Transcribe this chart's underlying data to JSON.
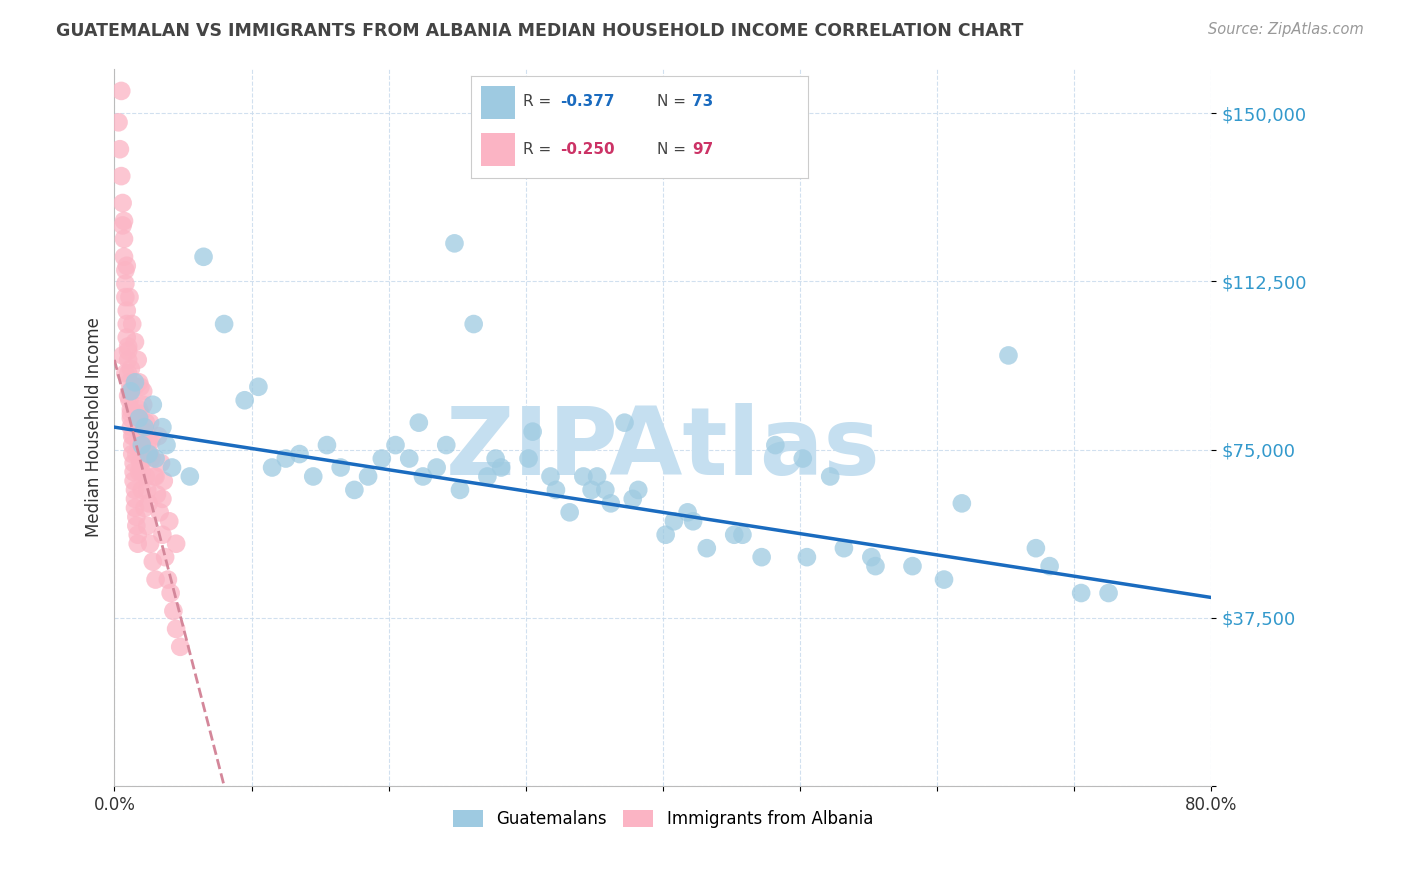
{
  "title": "GUATEMALAN VS IMMIGRANTS FROM ALBANIA MEDIAN HOUSEHOLD INCOME CORRELATION CHART",
  "source": "Source: ZipAtlas.com",
  "ylabel": "Median Household Income",
  "yticks": [
    0,
    37500,
    75000,
    112500,
    150000
  ],
  "ytick_labels": [
    "",
    "$37,500",
    "$75,000",
    "$112,500",
    "$150,000"
  ],
  "xmin": 0.0,
  "xmax": 0.8,
  "ymin": 0,
  "ymax": 160000,
  "legend_r1": "-0.377",
  "legend_n1": "73",
  "legend_r2": "-0.250",
  "legend_n2": "97",
  "blue_color": "#9ecae1",
  "pink_color": "#fbb4c4",
  "trend_blue": "#1a6bbf",
  "trend_pink": "#d4879a",
  "watermark": "ZIPAtlas",
  "watermark_color": "#c5dff0",
  "blue_scatter_x": [
    0.018,
    0.022,
    0.028,
    0.035,
    0.038,
    0.012,
    0.015,
    0.02,
    0.025,
    0.03,
    0.042,
    0.055,
    0.065,
    0.08,
    0.095,
    0.105,
    0.115,
    0.125,
    0.135,
    0.145,
    0.155,
    0.165,
    0.175,
    0.185,
    0.195,
    0.205,
    0.215,
    0.225,
    0.235,
    0.252,
    0.272,
    0.282,
    0.302,
    0.322,
    0.332,
    0.352,
    0.362,
    0.382,
    0.402,
    0.422,
    0.432,
    0.452,
    0.472,
    0.482,
    0.502,
    0.522,
    0.532,
    0.552,
    0.582,
    0.605,
    0.652,
    0.682,
    0.705,
    0.248,
    0.262,
    0.305,
    0.318,
    0.348,
    0.378,
    0.408,
    0.222,
    0.242,
    0.278,
    0.342,
    0.358,
    0.372,
    0.418,
    0.458,
    0.505,
    0.555,
    0.618,
    0.672,
    0.725
  ],
  "blue_scatter_y": [
    82000,
    80000,
    85000,
    80000,
    76000,
    88000,
    90000,
    76000,
    74000,
    73000,
    71000,
    69000,
    118000,
    103000,
    86000,
    89000,
    71000,
    73000,
    74000,
    69000,
    76000,
    71000,
    66000,
    69000,
    73000,
    76000,
    73000,
    69000,
    71000,
    66000,
    69000,
    71000,
    73000,
    66000,
    61000,
    69000,
    63000,
    66000,
    56000,
    59000,
    53000,
    56000,
    51000,
    76000,
    73000,
    69000,
    53000,
    51000,
    49000,
    46000,
    96000,
    49000,
    43000,
    121000,
    103000,
    79000,
    69000,
    66000,
    64000,
    59000,
    81000,
    76000,
    73000,
    69000,
    66000,
    81000,
    61000,
    56000,
    51000,
    49000,
    63000,
    53000,
    43000
  ],
  "pink_scatter_x": [
    0.003,
    0.004,
    0.005,
    0.005,
    0.006,
    0.006,
    0.007,
    0.007,
    0.008,
    0.008,
    0.008,
    0.009,
    0.009,
    0.009,
    0.01,
    0.01,
    0.01,
    0.011,
    0.011,
    0.011,
    0.012,
    0.012,
    0.012,
    0.013,
    0.013,
    0.013,
    0.014,
    0.014,
    0.014,
    0.015,
    0.015,
    0.015,
    0.016,
    0.016,
    0.017,
    0.017,
    0.018,
    0.018,
    0.019,
    0.019,
    0.02,
    0.02,
    0.021,
    0.021,
    0.022,
    0.023,
    0.024,
    0.025,
    0.026,
    0.027,
    0.006,
    0.008,
    0.01,
    0.012,
    0.014,
    0.016,
    0.018,
    0.02,
    0.022,
    0.024,
    0.026,
    0.028,
    0.03,
    0.032,
    0.034,
    0.036,
    0.01,
    0.012,
    0.015,
    0.018,
    0.022,
    0.026,
    0.03,
    0.035,
    0.04,
    0.045,
    0.007,
    0.009,
    0.011,
    0.013,
    0.015,
    0.017,
    0.019,
    0.021,
    0.023,
    0.025,
    0.027,
    0.029,
    0.031,
    0.033,
    0.035,
    0.037,
    0.039,
    0.041,
    0.043,
    0.045,
    0.048
  ],
  "pink_scatter_y": [
    148000,
    142000,
    136000,
    155000,
    130000,
    125000,
    122000,
    118000,
    115000,
    112000,
    109000,
    106000,
    103000,
    100000,
    98000,
    95000,
    92000,
    90000,
    88000,
    86000,
    84000,
    82000,
    80000,
    78000,
    76000,
    74000,
    72000,
    70000,
    68000,
    66000,
    64000,
    62000,
    60000,
    58000,
    56000,
    54000,
    90000,
    76000,
    83000,
    72000,
    79000,
    70000,
    76000,
    88000,
    73000,
    69000,
    66000,
    63000,
    81000,
    77000,
    96000,
    92000,
    87000,
    83000,
    78000,
    74000,
    70000,
    66000,
    62000,
    58000,
    54000,
    50000,
    46000,
    78000,
    72000,
    68000,
    97000,
    93000,
    89000,
    84000,
    79000,
    74000,
    69000,
    64000,
    59000,
    54000,
    126000,
    116000,
    109000,
    103000,
    99000,
    95000,
    89000,
    85000,
    81000,
    77000,
    73000,
    69000,
    65000,
    61000,
    56000,
    51000,
    46000,
    43000,
    39000,
    35000,
    31000
  ]
}
